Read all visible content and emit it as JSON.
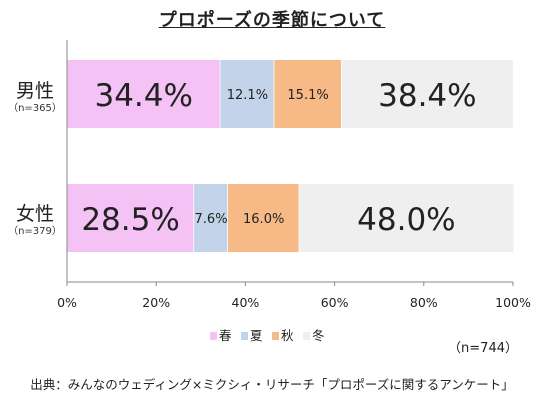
{
  "title": "プロポーズの季節について",
  "note": "（n=744）",
  "source": "出典：みんなのウェディング×ミクシィ・リサーチ「プロポーズに関するアンケート」",
  "categories": [
    {
      "name": "男性",
      "n": "（n=365）"
    },
    {
      "name": "女性",
      "n": "（n=379）"
    }
  ],
  "colors": {
    "spring": "#f4c2f4",
    "summer": "#c3d4ea",
    "autumn": "#f7b985",
    "winter": "#efefef",
    "axis": "#888888",
    "text": "#222222"
  },
  "chart_data": {
    "type": "bar",
    "orientation": "horizontal",
    "stacked": true,
    "categories": [
      "男性",
      "女性"
    ],
    "series": [
      {
        "name": "春",
        "values": [
          34.4,
          28.5
        ],
        "labels": [
          "34.4%",
          "28.5%"
        ]
      },
      {
        "name": "夏",
        "values": [
          12.1,
          7.6
        ],
        "labels": [
          "12.1%",
          "7.6%"
        ]
      },
      {
        "name": "秋",
        "values": [
          15.1,
          16.0
        ],
        "labels": [
          "15.1%",
          "16.0%"
        ]
      },
      {
        "name": "冬",
        "values": [
          38.4,
          48.0
        ],
        "labels": [
          "38.4%",
          "48.0%"
        ]
      }
    ],
    "xlim": [
      0,
      100
    ],
    "xticks": [
      "0%",
      "20%",
      "40%",
      "60%",
      "80%",
      "100%"
    ],
    "legend_position": "bottom",
    "grid": false
  }
}
